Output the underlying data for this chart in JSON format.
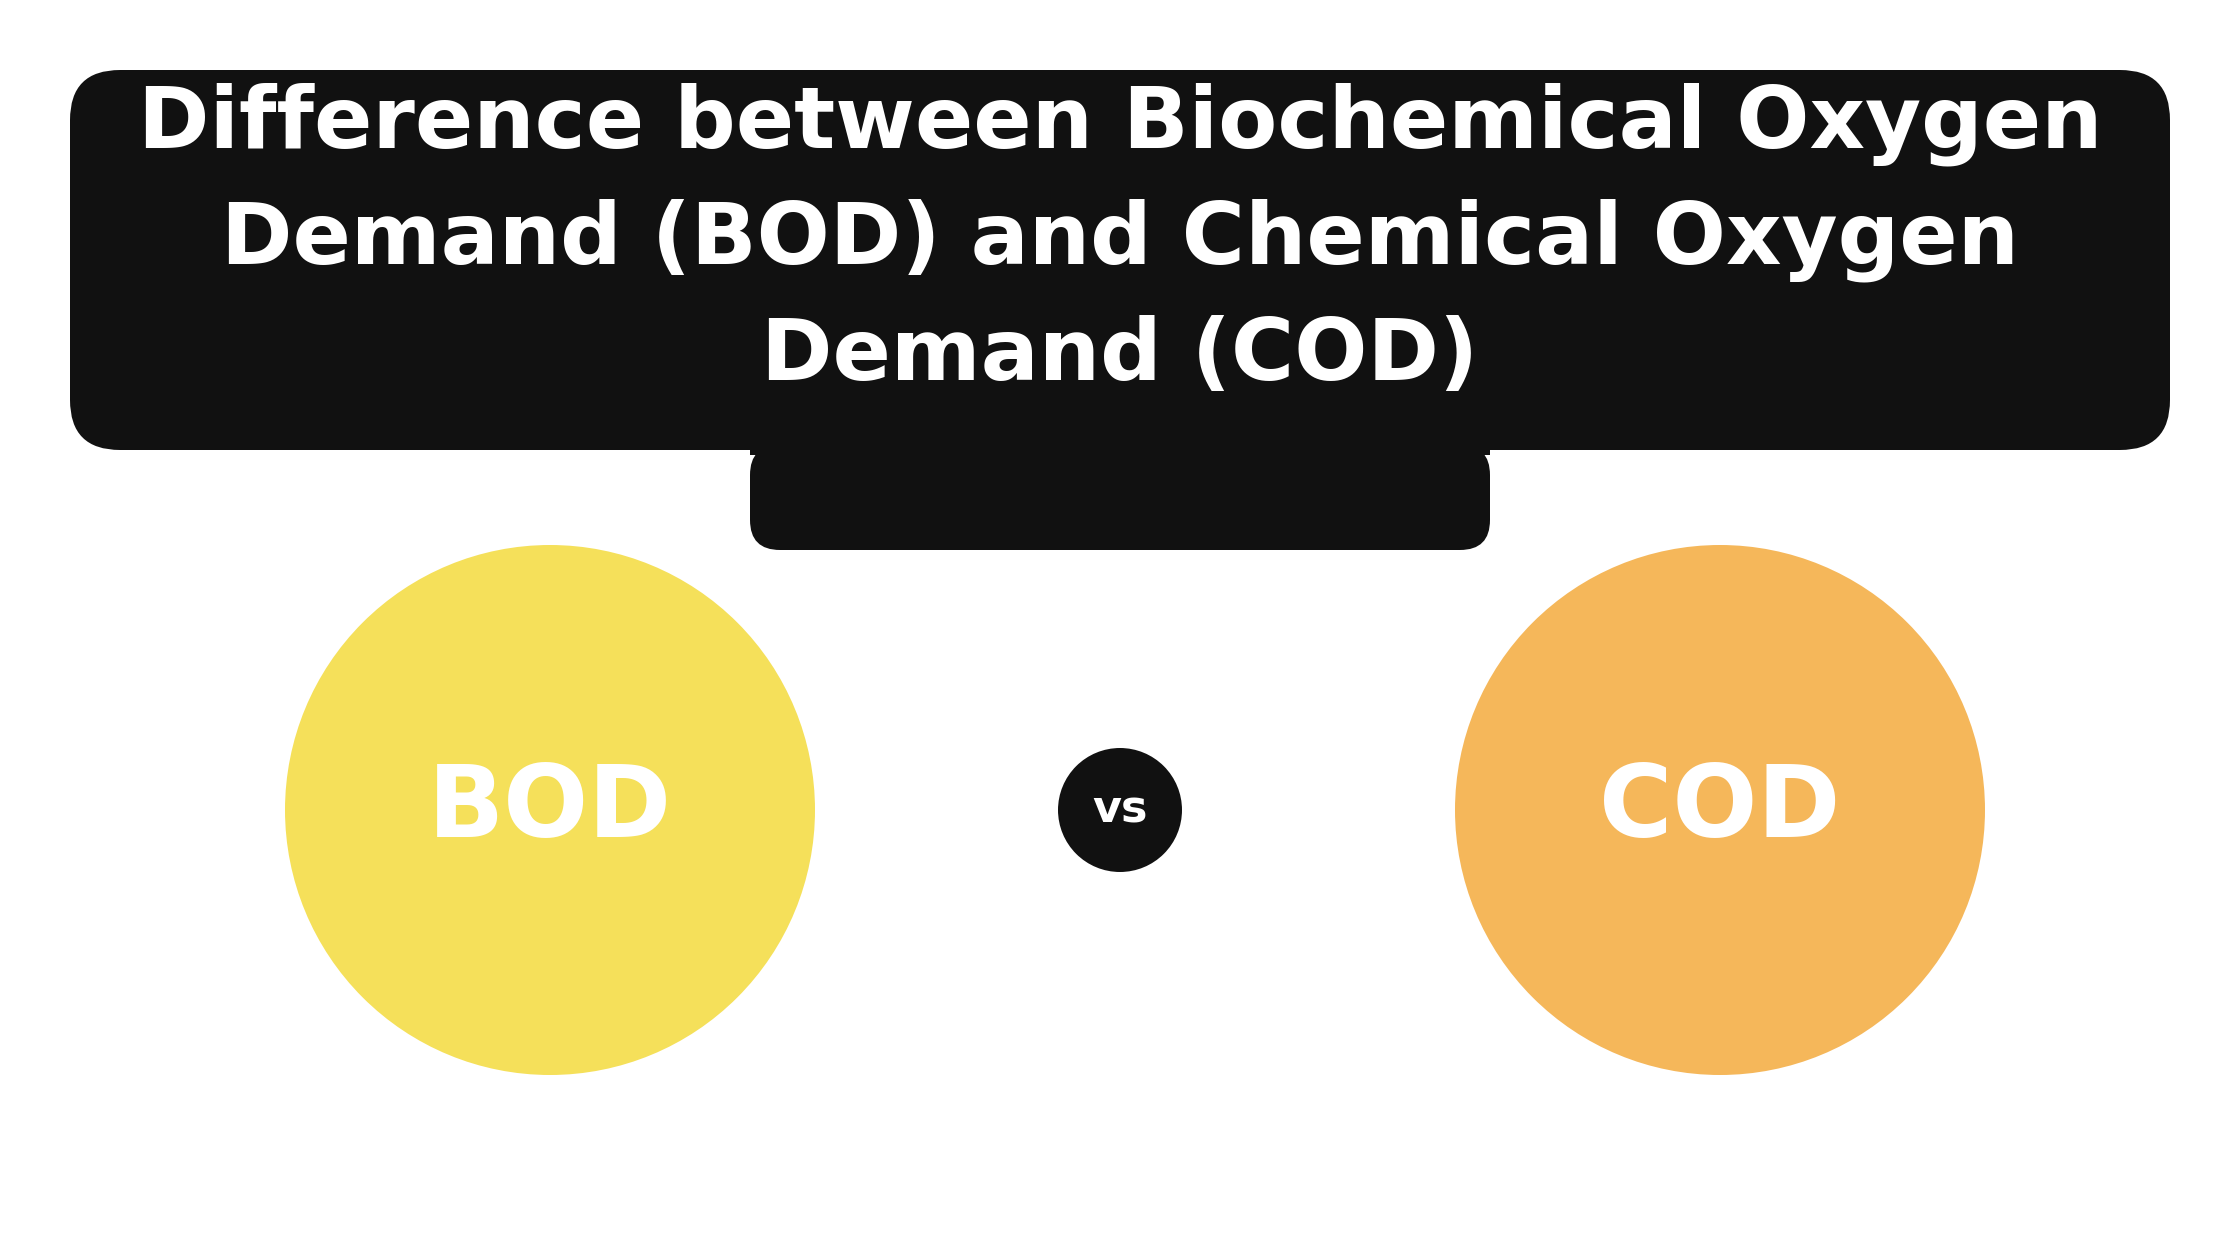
{
  "title_line1": "Difference between Biochemical Oxygen",
  "title_line2": "Demand (BOD) and Chemical Oxygen",
  "title_line3": "Demand (COD)",
  "title_bg_color": "#111111",
  "title_text_color": "#ffffff",
  "bg_color": "#ffffff",
  "bod_color": "#f5e05a",
  "cod_color": "#f5b75a",
  "vs_bg_color": "#111111",
  "vs_text_color": "#ffffff",
  "bod_label": "BOD",
  "cod_label": "COD",
  "vs_label": "vs",
  "label_fontsize": 72,
  "vs_fontsize": 32,
  "title_fontsize": 62
}
